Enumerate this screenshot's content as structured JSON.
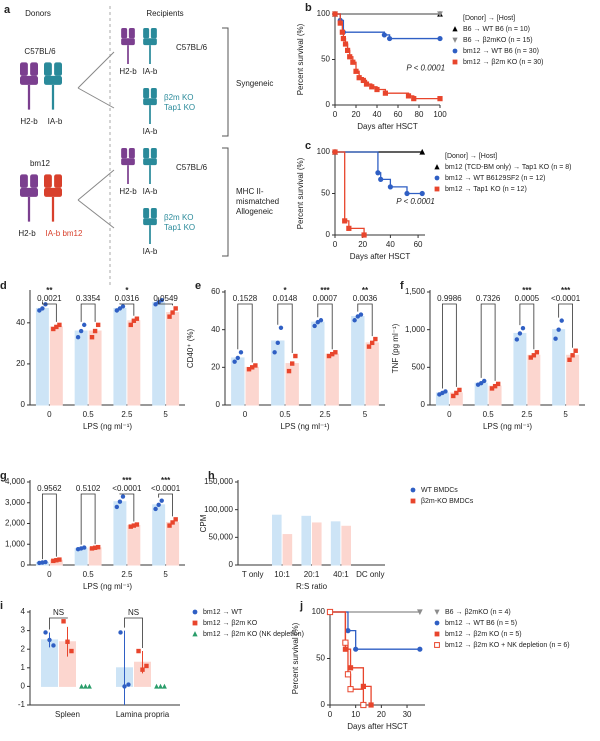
{
  "diagram": {
    "label": "a",
    "donors_title": "Donors",
    "recipients_title": "Recipients",
    "donor1": {
      "name": "C57BL/6",
      "mhc1": "H2-b",
      "mhc2": "IA-b"
    },
    "donor2": {
      "name": "bm12",
      "mhc1": "H2-b",
      "mhc2": "IA-b bm12"
    },
    "recipient1": {
      "name": "C57BL/6",
      "mhc1": "H2-b",
      "mhc2": "IA-b"
    },
    "recipient2": {
      "ko1": "β2m KO",
      "ko2": "Tap1 KO",
      "mhc2": "IA-b"
    },
    "recipient3": {
      "name": "C57BL/6",
      "mhc1": "H2-b",
      "mhc2": "IA-b"
    },
    "recipient4": {
      "ko1": "β2m KO",
      "ko2": "Tap1 KO",
      "mhc2": "IA-b"
    },
    "group1": "Syngeneic",
    "group2": [
      "MHC II-",
      "mismatched",
      "Allogeneic"
    ]
  },
  "chart_data": [
    {
      "type": "survival",
      "label": "b",
      "xlabel": "Days after HSCT",
      "ylabel": "Percent survival (%)",
      "xlim": [
        0,
        100
      ],
      "xticks": [
        0,
        20,
        40,
        60,
        80,
        100
      ],
      "ylim": [
        0,
        100
      ],
      "yticks": [
        0,
        50,
        100
      ],
      "legend_title": "[Donor] → [Host]",
      "annotation": "P < 0.0001",
      "series": [
        {
          "name": "B6 → WT B6 (n = 10)",
          "color": "#000000",
          "marker": "triangle",
          "x": [
            0,
            100
          ],
          "values": [
            100,
            100
          ]
        },
        {
          "name": "B6 → β2mKO (n = 15)",
          "color": "#8c8c8c",
          "marker": "triangle-down",
          "x": [
            0,
            100
          ],
          "values": [
            100,
            100
          ]
        },
        {
          "name": "bm12 → WT B6 (n = 30)",
          "color": "#2f5fc4",
          "marker": "circle",
          "x": [
            0,
            5,
            8,
            47,
            52,
            100
          ],
          "values": [
            100,
            93,
            80,
            77,
            73,
            73
          ]
        },
        {
          "name": "bm12 → β2m KO (n = 30)",
          "color": "#e8452c",
          "marker": "square",
          "x": [
            0,
            5,
            7,
            8,
            10,
            12,
            14,
            17,
            20,
            23,
            27,
            30,
            35,
            40,
            48,
            70,
            75,
            100
          ],
          "values": [
            100,
            90,
            80,
            73,
            67,
            60,
            53,
            47,
            37,
            30,
            27,
            23,
            20,
            17,
            13,
            10,
            7,
            7
          ]
        }
      ]
    },
    {
      "type": "survival",
      "label": "c",
      "xlabel": "Days after HSCT",
      "ylabel": "Percent survival (%)",
      "xlim": [
        0,
        65
      ],
      "xticks": [
        0,
        20,
        40,
        60
      ],
      "ylim": [
        0,
        100
      ],
      "yticks": [
        0,
        50,
        100
      ],
      "legend_title": "[Donor] → [Host]",
      "annotation": "P < 0.0001",
      "series": [
        {
          "name": "bm12 (TCD-BM only) → Tap1 KO (n = 8)",
          "color": "#000000",
          "marker": "triangle",
          "x": [
            0,
            63
          ],
          "values": [
            100,
            100
          ]
        },
        {
          "name": "bm12 → WT B6129SF2 (n = 12)",
          "color": "#2f5fc4",
          "marker": "circle",
          "x": [
            0,
            31,
            33,
            40,
            52,
            63
          ],
          "values": [
            100,
            75,
            67,
            58,
            50,
            50
          ]
        },
        {
          "name": "bm12 → Tap1 KO (n = 12)",
          "color": "#e8452c",
          "marker": "square",
          "x": [
            0,
            7,
            10,
            21
          ],
          "values": [
            100,
            17,
            8,
            0
          ]
        }
      ]
    },
    {
      "type": "bar",
      "label": "d",
      "xlabel": "LPS (ng ml⁻¹)",
      "ylabel": "CD80⁺ (%)",
      "categories": [
        "0",
        "0.5",
        "2.5",
        "5"
      ],
      "ylim": [
        0,
        55
      ],
      "yticks": [
        0,
        20,
        40
      ],
      "p_values": [
        "0.0021",
        "0.3354",
        "0.0316",
        "0.0549"
      ],
      "stars": [
        "**",
        null,
        "*",
        null
      ],
      "series": [
        {
          "color": "#2f5fc4",
          "fill": "#cde4f6",
          "marker": "circle",
          "values": [
            47,
            36,
            47,
            50
          ],
          "points": [
            [
              46,
              47,
              49
            ],
            [
              33,
              36,
              39
            ],
            [
              46,
              47,
              48
            ],
            [
              49,
              50,
              51
            ]
          ]
        },
        {
          "color": "#e8452c",
          "fill": "#fcd6cf",
          "marker": "square",
          "values": [
            38,
            36,
            41,
            45
          ],
          "points": [
            [
              37,
              38,
              39
            ],
            [
              33,
              36,
              39
            ],
            [
              39,
              41,
              42
            ],
            [
              43,
              45,
              47
            ]
          ]
        }
      ]
    },
    {
      "type": "bar",
      "label": "e",
      "xlabel": "LPS (ng ml⁻¹)",
      "ylabel": "CD40⁺ (%)",
      "categories": [
        "0",
        "0.5",
        "2.5",
        "5"
      ],
      "ylim": [
        0,
        60
      ],
      "yticks": [
        0,
        20,
        40,
        60
      ],
      "p_values": [
        "0.1528",
        "0.0148",
        "0.0007",
        "0.0036"
      ],
      "stars": [
        null,
        "*",
        "***",
        "**"
      ],
      "series": [
        {
          "color": "#2f5fc4",
          "fill": "#cde4f6",
          "marker": "circle",
          "values": [
            25,
            34,
            44,
            47
          ],
          "points": [
            [
              23,
              25,
              28
            ],
            [
              28,
              33,
              41
            ],
            [
              42,
              44,
              45
            ],
            [
              45,
              47,
              48
            ]
          ]
        },
        {
          "color": "#e8452c",
          "fill": "#fcd6cf",
          "marker": "square",
          "values": [
            20,
            22,
            27,
            33
          ],
          "points": [
            [
              19,
              20,
              21
            ],
            [
              18,
              22,
              26
            ],
            [
              26,
              27,
              28
            ],
            [
              31,
              33,
              35
            ]
          ]
        }
      ]
    },
    {
      "type": "bar",
      "label": "f",
      "xlabel": "LPS (ng ml⁻¹)",
      "ylabel": "TNF (pg ml⁻¹)",
      "categories": [
        "0",
        "0.5",
        "2.5",
        "5"
      ],
      "ylim": [
        0,
        1500
      ],
      "yticks": [
        0,
        500,
        {
          "value": 1000,
          "label": "1,000"
        },
        {
          "value": 1500,
          "label": "1,500"
        }
      ],
      "p_values": [
        "0.9986",
        "0.7326",
        "0.0005",
        "<0.0001"
      ],
      "stars": [
        null,
        null,
        "***",
        "***"
      ],
      "series": [
        {
          "color": "#2f5fc4",
          "fill": "#cde4f6",
          "marker": "circle",
          "values": [
            160,
            290,
            950,
            1000
          ],
          "points": [
            [
              140,
              160,
              180
            ],
            [
              270,
              290,
              320
            ],
            [
              870,
              950,
              1020
            ],
            [
              880,
              1000,
              1120
            ]
          ]
        },
        {
          "color": "#e8452c",
          "fill": "#fcd6cf",
          "marker": "square",
          "values": [
            160,
            250,
            660,
            660
          ],
          "points": [
            [
              120,
              160,
              200
            ],
            [
              220,
              250,
              280
            ],
            [
              630,
              660,
              700
            ],
            [
              600,
              660,
              720
            ]
          ]
        }
      ]
    },
    {
      "type": "bar",
      "label": "g",
      "xlabel": "LPS (ng ml⁻¹)",
      "ylabel": "IL-6 (pg ml⁻¹)",
      "categories": [
        "0",
        "0.5",
        "2.5",
        "5"
      ],
      "ylim": [
        0,
        4000
      ],
      "yticks": [
        0,
        {
          "value": 1000,
          "label": "1,000"
        },
        {
          "value": 2000,
          "label": "2,000"
        },
        {
          "value": 3000,
          "label": "3,000"
        },
        {
          "value": 4000,
          "label": "4,000"
        }
      ],
      "p_values": [
        "0.9562",
        "0.5102",
        "<0.0001",
        "<0.0001"
      ],
      "stars": [
        null,
        null,
        "***",
        "***"
      ],
      "series": [
        {
          "color": "#2f5fc4",
          "fill": "#cde4f6",
          "marker": "circle",
          "values": [
            120,
            800,
            3050,
            2900
          ],
          "points": [
            [
              100,
              120,
              140
            ],
            [
              760,
              800,
              840
            ],
            [
              2800,
              3050,
              3300
            ],
            [
              2700,
              2900,
              3100
            ]
          ]
        },
        {
          "color": "#e8452c",
          "fill": "#fcd6cf",
          "marker": "square",
          "values": [
            230,
            830,
            1900,
            2050
          ],
          "points": [
            [
              200,
              230,
              260
            ],
            [
              800,
              830,
              860
            ],
            [
              1850,
              1900,
              1950
            ],
            [
              1900,
              2050,
              2200
            ]
          ]
        }
      ]
    },
    {
      "type": "bar",
      "label": "h",
      "xlabel": "R:S ratio",
      "ylabel": "CPM",
      "categories": [
        "T only",
        "10:1",
        "20:1",
        "40:1",
        "DC only"
      ],
      "ylim": [
        0,
        150000
      ],
      "yticks": [
        0,
        {
          "value": 50000,
          "label": "50,000"
        },
        {
          "value": 100000,
          "label": "100,000"
        },
        {
          "value": 150000,
          "label": "150,000"
        }
      ],
      "series": [
        {
          "name": "WT BMDCs",
          "color": "#2f5fc4",
          "fill": "#cde4f6",
          "marker": "circle",
          "values": [
            0,
            90000,
            88000,
            78000,
            0
          ]
        },
        {
          "name": "β2m-KO BMDCs",
          "color": "#e8452c",
          "fill": "#fcd6cf",
          "marker": "square",
          "values": [
            0,
            55000,
            76000,
            70000,
            0
          ]
        }
      ]
    },
    {
      "type": "bar",
      "label": "i",
      "ylabel": "NK cell (%)",
      "categories": [
        "Spleen",
        "Lamina propria"
      ],
      "ylim": [
        -1,
        4
      ],
      "yticks": [
        -1,
        0,
        1,
        2,
        3,
        4
      ],
      "significance": [
        "NS",
        "NS"
      ],
      "series": [
        {
          "name": "bm12 → WT",
          "color": "#2f5fc4",
          "fill": "#cde4f6",
          "marker": "circle",
          "values": [
            2.5,
            1.0
          ],
          "errors": [
            0.4,
            2.0
          ],
          "points": [
            [
              2.9,
              2.5,
              2.2
            ],
            [
              2.9,
              0,
              0.1
            ]
          ]
        },
        {
          "name": "bm12 → β2m KO",
          "color": "#e8452c",
          "fill": "#fcd6cf",
          "marker": "square",
          "values": [
            2.4,
            1.3
          ],
          "errors": [
            0.8,
            0.6
          ],
          "points": [
            [
              3.5,
              2.4,
              1.9
            ],
            [
              1.9,
              0.9,
              1.1
            ]
          ]
        },
        {
          "name": "bm12 → β2m KO (NK depletion)",
          "color": "#2a9d6a",
          "fill": "#cdebdc",
          "marker": "triangle",
          "values": [
            0,
            0
          ],
          "errors": [
            0.05,
            0.05
          ],
          "points": [
            [
              0,
              0,
              0
            ],
            [
              0,
              0,
              0
            ]
          ]
        }
      ]
    },
    {
      "type": "survival",
      "label": "j",
      "xlabel": "Days after HSCT",
      "ylabel": "Percent survival (%)",
      "xlim": [
        0,
        37
      ],
      "xticks": [
        0,
        10,
        20,
        30
      ],
      "ylim": [
        0,
        100
      ],
      "yticks": [
        0,
        50,
        100
      ],
      "series": [
        {
          "name": "B6 → β2mKO (n = 4)",
          "color": "#8c8c8c",
          "marker": "triangle-down",
          "x": [
            0,
            35
          ],
          "values": [
            100,
            100
          ]
        },
        {
          "name": "bm12 → WT B6 (n = 5)",
          "color": "#2f5fc4",
          "marker": "circle",
          "x": [
            0,
            7,
            10,
            35
          ],
          "values": [
            100,
            80,
            60,
            60
          ]
        },
        {
          "name": "bm12 → β2m KO (n = 5)",
          "color": "#e8452c",
          "marker": "square",
          "x": [
            0,
            6,
            8,
            13,
            16
          ],
          "values": [
            100,
            60,
            40,
            20,
            0
          ]
        },
        {
          "name": "bm12 → β2m KO + NK depletion (n = 6)",
          "color": "#e8452c",
          "marker": "square-open",
          "x": [
            0,
            6,
            7,
            8,
            13
          ],
          "values": [
            100,
            67,
            33,
            17,
            0
          ]
        }
      ]
    }
  ]
}
